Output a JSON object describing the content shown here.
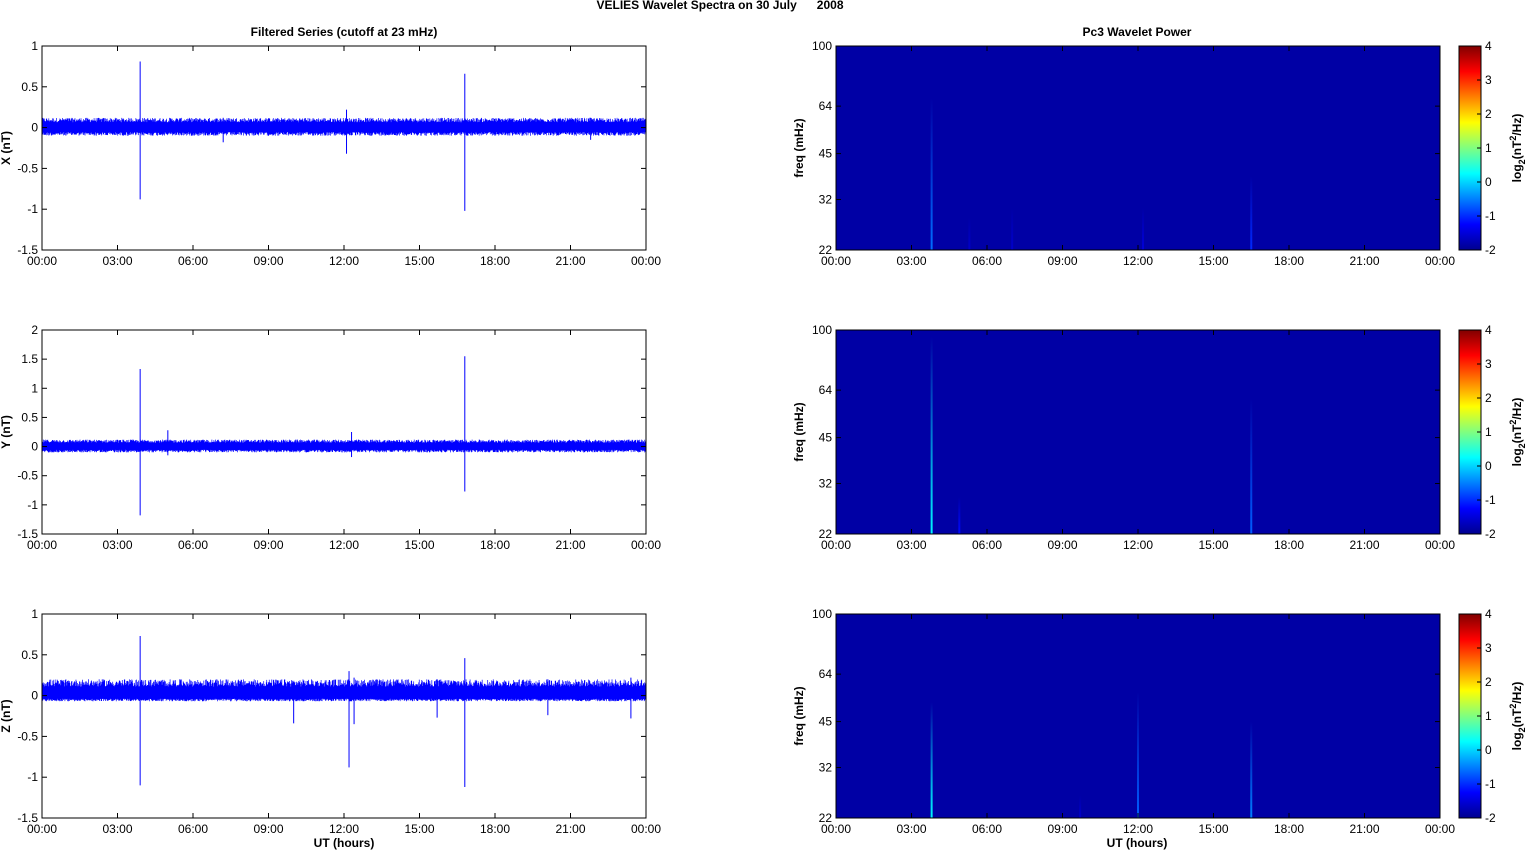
{
  "figure": {
    "title": "VELIES Wavelet Spectra on 30 July      2008",
    "left_title": "Filtered Series (cutoff at 23 mHz)",
    "right_title": "Pc3 Wavelet Power",
    "xlabel": "UT (hours)"
  },
  "chart_data": [
    {
      "type": "line",
      "ylabel": "X (nT)",
      "ylim": [
        -1.5,
        1
      ],
      "yticks": [
        1,
        0.5,
        0,
        -0.5,
        -1,
        -1.5
      ],
      "ytick_labels": [
        "1",
        "0.5",
        "0",
        "-0.5",
        "-1",
        "-1.5"
      ],
      "xlim": [
        0,
        24
      ],
      "xticks": [
        0,
        3,
        6,
        9,
        12,
        15,
        18,
        21,
        24
      ],
      "xtick_labels": [
        "00:00",
        "03:00",
        "06:00",
        "09:00",
        "12:00",
        "15:00",
        "18:00",
        "21:00",
        "00:00"
      ],
      "color": "#0000ff",
      "noise_band": [
        -0.1,
        0.12
      ],
      "spikes": [
        {
          "x": 3.9,
          "min": -0.88,
          "max": 0.81
        },
        {
          "x": 12.1,
          "min": -0.32,
          "max": 0.22
        },
        {
          "x": 16.8,
          "min": -1.02,
          "max": 0.66
        },
        {
          "x": 7.2,
          "min": -0.18,
          "max": 0.12
        },
        {
          "x": 21.8,
          "min": -0.15,
          "max": 0.12
        }
      ]
    },
    {
      "type": "line",
      "ylabel": "Y (nT)",
      "ylim": [
        -1.5,
        2
      ],
      "yticks": [
        2,
        1.5,
        1,
        0.5,
        0,
        -0.5,
        -1,
        -1.5
      ],
      "ytick_labels": [
        "2",
        "1.5",
        "1",
        "0.5",
        "0",
        "-0.5",
        "-1",
        "-1.5"
      ],
      "xlim": [
        0,
        24
      ],
      "xticks": [
        0,
        3,
        6,
        9,
        12,
        15,
        18,
        21,
        24
      ],
      "xtick_labels": [
        "00:00",
        "03:00",
        "06:00",
        "09:00",
        "12:00",
        "15:00",
        "18:00",
        "21:00",
        "00:00"
      ],
      "color": "#0000ff",
      "noise_band": [
        -0.1,
        0.12
      ],
      "spikes": [
        {
          "x": 3.9,
          "min": -1.18,
          "max": 1.33
        },
        {
          "x": 5.0,
          "min": -0.15,
          "max": 0.28
        },
        {
          "x": 12.3,
          "min": -0.18,
          "max": 0.25
        },
        {
          "x": 16.8,
          "min": -0.77,
          "max": 1.55
        }
      ]
    },
    {
      "type": "line",
      "ylabel": "Z (nT)",
      "ylim": [
        -1.5,
        1
      ],
      "yticks": [
        1,
        0.5,
        0,
        -0.5,
        -1,
        -1.5
      ],
      "ytick_labels": [
        "1",
        "0.5",
        "0",
        "-0.5",
        "-1",
        "-1.5"
      ],
      "xlim": [
        0,
        24
      ],
      "xticks": [
        0,
        3,
        6,
        9,
        12,
        15,
        18,
        21,
        24
      ],
      "xtick_labels": [
        "00:00",
        "03:00",
        "06:00",
        "09:00",
        "12:00",
        "15:00",
        "18:00",
        "21:00",
        "00:00"
      ],
      "color": "#0000ff",
      "noise_band": [
        -0.07,
        0.2
      ],
      "spikes": [
        {
          "x": 3.9,
          "min": -1.1,
          "max": 0.73
        },
        {
          "x": 10.0,
          "min": -0.34,
          "max": 0.15
        },
        {
          "x": 12.2,
          "min": -0.88,
          "max": 0.3
        },
        {
          "x": 12.4,
          "min": -0.35,
          "max": 0.22
        },
        {
          "x": 15.7,
          "min": -0.27,
          "max": 0.2
        },
        {
          "x": 16.8,
          "min": -1.12,
          "max": 0.46
        },
        {
          "x": 20.1,
          "min": -0.24,
          "max": 0.2
        },
        {
          "x": 23.4,
          "min": -0.28,
          "max": 0.22
        }
      ]
    },
    {
      "type": "heatmap",
      "ylabel": "freq (mHz)",
      "colorbar_label": "log2(nT2/Hz)",
      "ylim": [
        22,
        100
      ],
      "yscale": "log",
      "yticks": [
        100,
        64,
        45,
        32,
        22
      ],
      "xlim": [
        0,
        24
      ],
      "xticks": [
        0,
        3,
        6,
        9,
        12,
        15,
        18,
        21,
        24
      ],
      "xtick_labels": [
        "00:00",
        "03:00",
        "06:00",
        "09:00",
        "12:00",
        "15:00",
        "18:00",
        "21:00",
        "00:00"
      ],
      "clim": [
        -2,
        4
      ],
      "cticks": [
        4,
        3,
        2,
        1,
        0,
        -1,
        -2
      ],
      "background_value": -1.85,
      "streaks": [
        {
          "x": 3.8,
          "fmin": 22,
          "fmax": 68,
          "value": -0.6
        },
        {
          "x": 5.3,
          "fmin": 22,
          "fmax": 28,
          "value": -1.6
        },
        {
          "x": 7.0,
          "fmin": 22,
          "fmax": 30,
          "value": -1.6
        },
        {
          "x": 12.2,
          "fmin": 22,
          "fmax": 30,
          "value": -1.5
        },
        {
          "x": 16.5,
          "fmin": 22,
          "fmax": 38,
          "value": -1.0
        }
      ]
    },
    {
      "type": "heatmap",
      "ylabel": "freq (mHz)",
      "colorbar_label": "log2(nT2/Hz)",
      "ylim": [
        22,
        100
      ],
      "yscale": "log",
      "yticks": [
        100,
        64,
        45,
        32,
        22
      ],
      "xlim": [
        0,
        24
      ],
      "xticks": [
        0,
        3,
        6,
        9,
        12,
        15,
        18,
        21,
        24
      ],
      "xtick_labels": [
        "00:00",
        "03:00",
        "06:00",
        "09:00",
        "12:00",
        "15:00",
        "18:00",
        "21:00",
        "00:00"
      ],
      "clim": [
        -2,
        4
      ],
      "cticks": [
        4,
        3,
        2,
        1,
        0,
        -1,
        -2
      ],
      "background_value": -1.85,
      "streaks": [
        {
          "x": 3.8,
          "fmin": 22,
          "fmax": 95,
          "value": 0.2
        },
        {
          "x": 4.9,
          "fmin": 22,
          "fmax": 29,
          "value": -1.2
        },
        {
          "x": 16.5,
          "fmin": 22,
          "fmax": 60,
          "value": -0.7
        }
      ]
    },
    {
      "type": "heatmap",
      "ylabel": "freq (mHz)",
      "colorbar_label": "log2(nT2/Hz)",
      "ylim": [
        22,
        100
      ],
      "yscale": "log",
      "yticks": [
        100,
        64,
        45,
        32,
        22
      ],
      "xlim": [
        0,
        24
      ],
      "xticks": [
        0,
        3,
        6,
        9,
        12,
        15,
        18,
        21,
        24
      ],
      "xtick_labels": [
        "00:00",
        "03:00",
        "06:00",
        "09:00",
        "12:00",
        "15:00",
        "18:00",
        "21:00",
        "00:00"
      ],
      "clim": [
        -2,
        4
      ],
      "cticks": [
        4,
        3,
        2,
        1,
        0,
        -1,
        -2
      ],
      "background_value": -1.85,
      "streaks": [
        {
          "x": 3.8,
          "fmin": 22,
          "fmax": 52,
          "value": 0.2
        },
        {
          "x": 9.7,
          "fmin": 22,
          "fmax": 26,
          "value": -1.6
        },
        {
          "x": 12.0,
          "fmin": 22,
          "fmax": 56,
          "value": -0.7
        },
        {
          "x": 16.5,
          "fmin": 22,
          "fmax": 45,
          "value": -0.5
        }
      ]
    }
  ]
}
